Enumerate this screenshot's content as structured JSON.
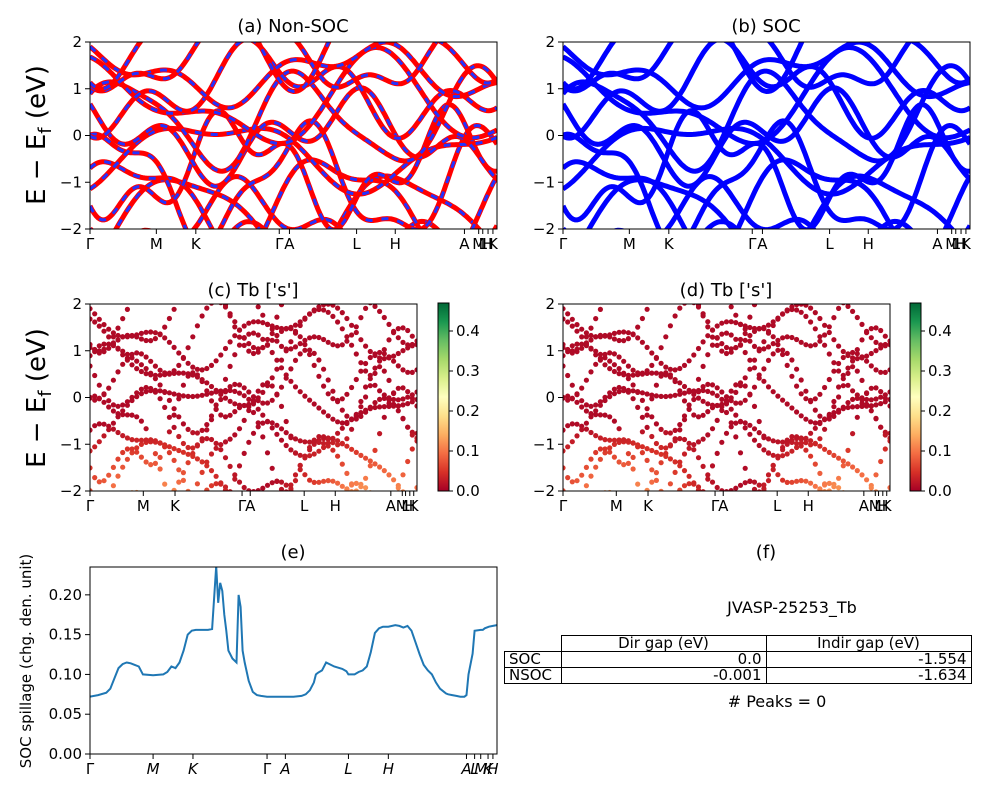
{
  "band_labels": [
    "Γ",
    "M",
    "K",
    "Γ",
    "A",
    "L",
    "H",
    "A",
    "M",
    "L",
    "H",
    "K"
  ],
  "band_label_positions": [
    0,
    0.163,
    0.26,
    0.465,
    0.49,
    0.655,
    0.75,
    0.92,
    0.955,
    0.965,
    0.978,
    0.99
  ],
  "spill_labels": [
    "Γ",
    "M",
    "K",
    "Γ",
    "A",
    "L",
    "H",
    "A",
    "L",
    "M",
    "K",
    "H"
  ],
  "spill_label_positions": [
    0,
    0.155,
    0.253,
    0.435,
    0.48,
    0.635,
    0.733,
    0.925,
    0.945,
    0.96,
    0.978,
    0.99
  ],
  "panels": {
    "a": {
      "title": "(a) Non-SOC"
    },
    "b": {
      "title": "(b) SOC"
    },
    "c": {
      "title": "(c)  Tb ['s']"
    },
    "d": {
      "title": "(d) Tb ['s']"
    },
    "e": {
      "title": "(e)"
    },
    "f": {
      "title": "(f)"
    }
  },
  "axis": {
    "band_ylabel": "E − E",
    "band_ylabel_sub": "f",
    "band_ylabel_unit": " (eV)",
    "band_yticks": [
      "2",
      "1",
      "0",
      "−1",
      "−2"
    ],
    "colorbar_ticks": [
      "0.4",
      "0.3",
      "0.2",
      "0.1",
      "0.0"
    ],
    "spill_ylabel": "SOC spillage (chg. den. unit)",
    "spill_yticks": [
      "0.20",
      "0.15",
      "0.10",
      "0.05",
      "0.00"
    ]
  },
  "chart_data": [
    {
      "type": "line",
      "title": "(a) Non-SOC",
      "ylabel": "E − E_f (eV)",
      "ylim": [
        -2,
        2
      ],
      "series_colors": [
        "#ff0000",
        "#0000ff"
      ],
      "line_style": "red solid with blue dashed overlay"
    },
    {
      "type": "line",
      "title": "(b) SOC",
      "ylim": [
        -2,
        2
      ],
      "series_colors": [
        "#0000ff"
      ]
    },
    {
      "type": "scatter",
      "title": "(c)  Tb ['s']",
      "ylabel": "E − E_f (eV)",
      "ylim": [
        -2,
        2
      ],
      "colormap": "RdYlGn",
      "colorbar_range": [
        0.0,
        0.47
      ]
    },
    {
      "type": "scatter",
      "title": "(d) Tb ['s']",
      "ylim": [
        -2,
        2
      ],
      "colormap": "RdYlGn",
      "colorbar_range": [
        0.0,
        0.47
      ]
    },
    {
      "type": "line",
      "title": "(e)",
      "ylabel": "SOC spillage (chg. den. unit)",
      "ylim": [
        0,
        0.235
      ],
      "xlim": [
        0,
        1
      ],
      "color": "#1f77b4",
      "x": [
        0,
        0.02,
        0.04,
        0.05,
        0.06,
        0.07,
        0.08,
        0.09,
        0.1,
        0.11,
        0.12,
        0.13,
        0.155,
        0.18,
        0.19,
        0.2,
        0.21,
        0.22,
        0.23,
        0.24,
        0.25,
        0.26,
        0.27,
        0.28,
        0.29,
        0.3,
        0.31,
        0.315,
        0.32,
        0.325,
        0.33,
        0.335,
        0.34,
        0.35,
        0.36,
        0.365,
        0.37,
        0.375,
        0.38,
        0.39,
        0.4,
        0.41,
        0.42,
        0.435,
        0.46,
        0.48,
        0.5,
        0.52,
        0.53,
        0.54,
        0.55,
        0.555,
        0.56,
        0.57,
        0.58,
        0.6,
        0.62,
        0.63,
        0.635,
        0.64,
        0.65,
        0.66,
        0.67,
        0.68,
        0.69,
        0.7,
        0.71,
        0.72,
        0.733,
        0.75,
        0.76,
        0.77,
        0.78,
        0.79,
        0.8,
        0.81,
        0.82,
        0.83,
        0.84,
        0.85,
        0.86,
        0.87,
        0.875,
        0.88,
        0.89,
        0.9,
        0.91,
        0.92,
        0.925,
        0.93,
        0.94,
        0.945,
        0.96,
        0.965,
        0.97,
        0.98,
        0.99,
        1.0
      ],
      "y": [
        0.072,
        0.074,
        0.077,
        0.082,
        0.095,
        0.108,
        0.113,
        0.115,
        0.114,
        0.112,
        0.11,
        0.1,
        0.099,
        0.1,
        0.103,
        0.11,
        0.108,
        0.115,
        0.13,
        0.15,
        0.155,
        0.156,
        0.156,
        0.156,
        0.156,
        0.157,
        0.236,
        0.19,
        0.215,
        0.205,
        0.175,
        0.155,
        0.13,
        0.12,
        0.115,
        0.2,
        0.185,
        0.13,
        0.115,
        0.092,
        0.078,
        0.074,
        0.073,
        0.072,
        0.072,
        0.072,
        0.072,
        0.073,
        0.075,
        0.08,
        0.09,
        0.1,
        0.102,
        0.105,
        0.115,
        0.11,
        0.107,
        0.104,
        0.1,
        0.1,
        0.1,
        0.103,
        0.105,
        0.11,
        0.128,
        0.152,
        0.158,
        0.16,
        0.16,
        0.162,
        0.161,
        0.159,
        0.161,
        0.155,
        0.14,
        0.125,
        0.112,
        0.105,
        0.1,
        0.09,
        0.082,
        0.078,
        0.076,
        0.075,
        0.074,
        0.073,
        0.072,
        0.072,
        0.074,
        0.1,
        0.126,
        0.155,
        0.156,
        0.156,
        0.158,
        0.16,
        0.161,
        0.162
      ]
    }
  ],
  "gap_table": {
    "caption": "JVASP-25253_Tb",
    "headers": [
      "Dir gap (eV)",
      "Indir gap (eV)"
    ],
    "rows": [
      {
        "label": "SOC",
        "dir": "0.0",
        "indir": "-1.554"
      },
      {
        "label": "NSOC",
        "dir": "-0.001",
        "indir": "-1.634"
      }
    ],
    "peaks": "# Peaks = 0"
  }
}
